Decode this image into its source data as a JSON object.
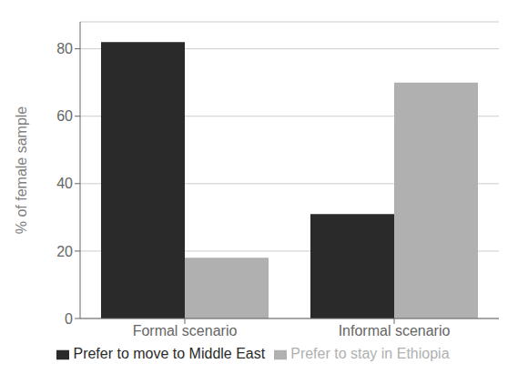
{
  "chart_data": {
    "type": "bar",
    "categories": [
      "Formal scenario",
      "Informal scenario"
    ],
    "series": [
      {
        "name": "Prefer to move to Middle East",
        "color": "#2a2a2a",
        "values": [
          82,
          31
        ]
      },
      {
        "name": "Prefer to stay in Ethiopia",
        "color": "#b0b0b0",
        "values": [
          18,
          70
        ]
      }
    ],
    "ylabel": "% of female sample",
    "ylim": [
      0,
      88
    ],
    "yticks": [
      0,
      20,
      40,
      60,
      80
    ],
    "grid": true,
    "legend": "bottom"
  }
}
